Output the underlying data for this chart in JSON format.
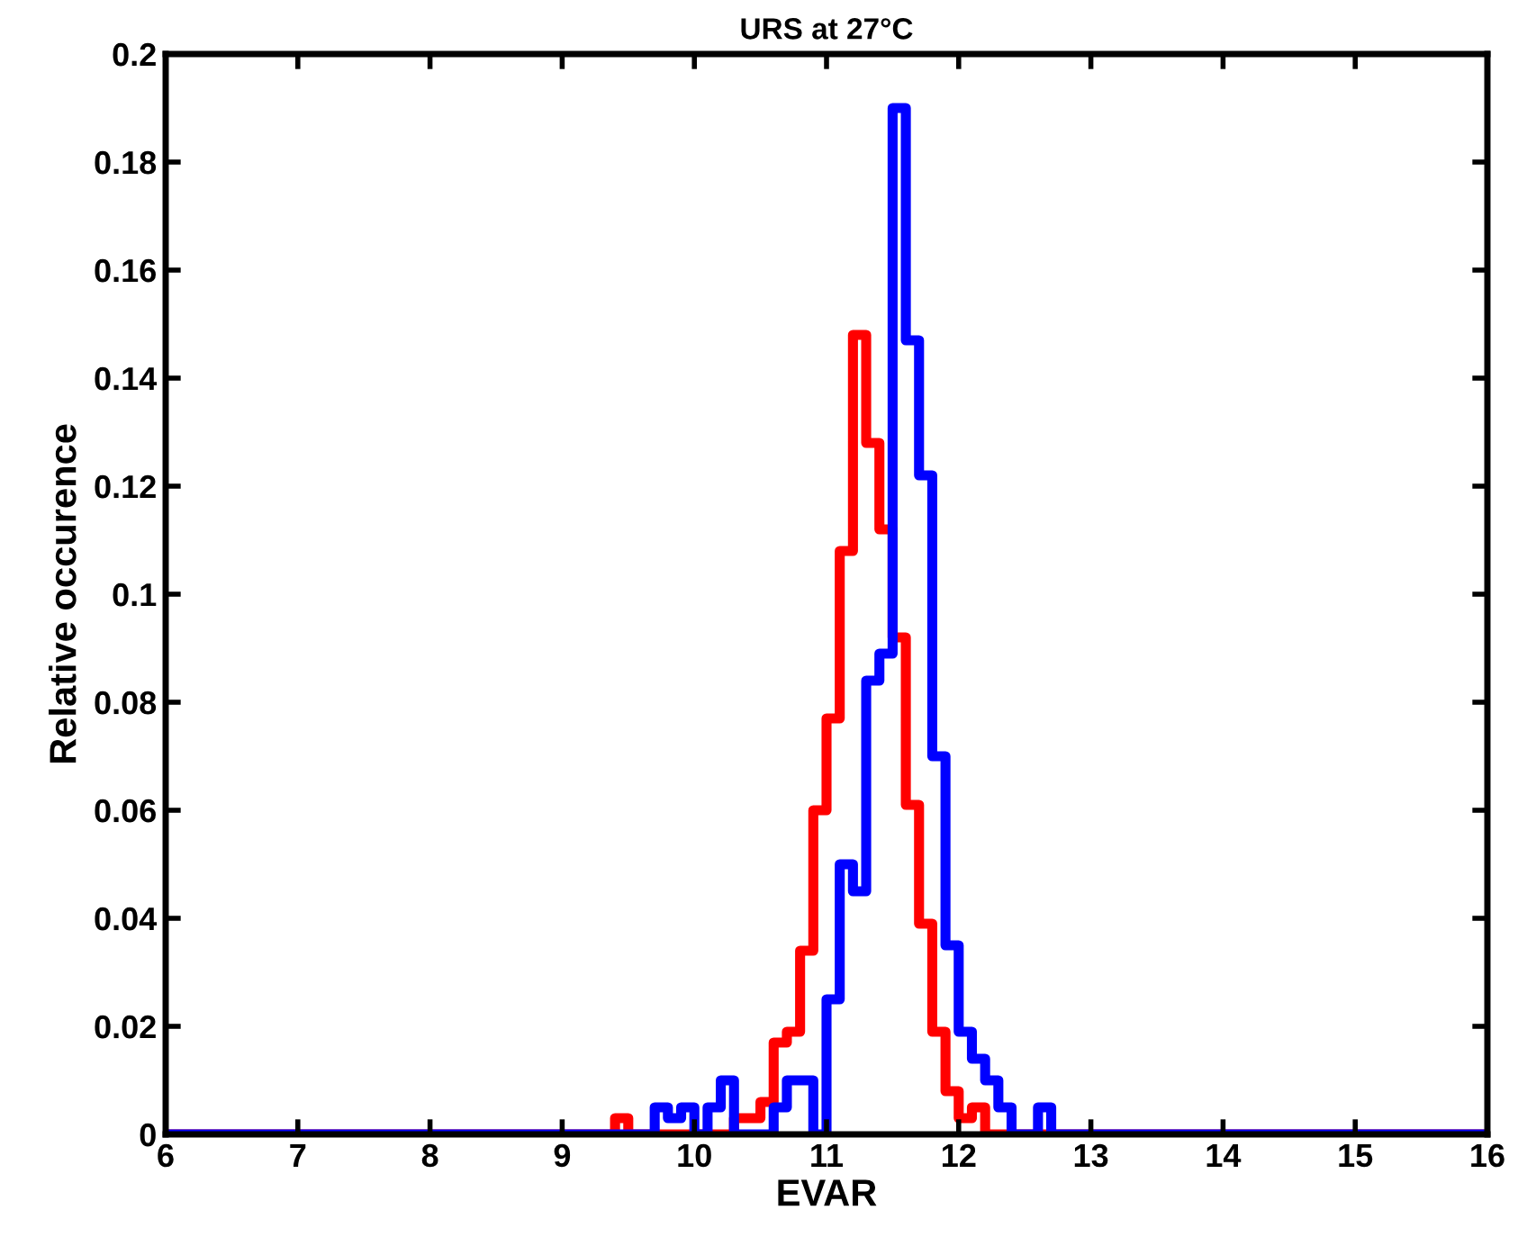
{
  "chart_data": {
    "type": "histogram",
    "title": "URS at 27°C",
    "xlabel": "EVAR",
    "ylabel": "Relative occurence",
    "bins": [
      6,
      9.3,
      9.4,
      9.5,
      9.6,
      9.7,
      9.8,
      9.9,
      10.0,
      10.1,
      10.2,
      10.3,
      10.4,
      10.5,
      10.6,
      10.7,
      10.8,
      10.9,
      11.0,
      11.1,
      11.2,
      11.3,
      11.4,
      11.5,
      11.6,
      11.7,
      11.8,
      11.9,
      12.0,
      12.1,
      12.2,
      12.3,
      12.4,
      12.5,
      12.6,
      12.7,
      12.8,
      16
    ],
    "series": [
      {
        "color": "#ff0000",
        "values": [
          0,
          0,
          0.003,
          0,
          0,
          0,
          0,
          0,
          0,
          0,
          0,
          0.003,
          0.003,
          0.006,
          0.017,
          0.019,
          0.034,
          0.06,
          0.077,
          0.108,
          0.148,
          0.128,
          0.112,
          0.092,
          0.061,
          0.039,
          0.019,
          0.008,
          0.003,
          0.005,
          0,
          0,
          0,
          0,
          0,
          0,
          0
        ]
      },
      {
        "color": "#0000ff",
        "values": [
          0,
          0,
          0,
          0,
          0,
          0.005,
          0.003,
          0.005,
          0,
          0.005,
          0.01,
          0,
          0,
          0,
          0.005,
          0.01,
          0.01,
          0,
          0.025,
          0.05,
          0.045,
          0.084,
          0.089,
          0.19,
          0.147,
          0.122,
          0.07,
          0.035,
          0.019,
          0.014,
          0.01,
          0.005,
          0,
          0,
          0.005,
          0,
          0
        ]
      }
    ],
    "xlim": [
      6,
      16
    ],
    "xticks": [
      6,
      7,
      8,
      9,
      10,
      11,
      12,
      13,
      14,
      15,
      16
    ],
    "ylim": [
      0,
      0.2
    ],
    "yticks": [
      0,
      0.02,
      0.04,
      0.06,
      0.08,
      0.1,
      0.12,
      0.14,
      0.16,
      0.18,
      0.2
    ],
    "grid": false,
    "legend": false
  }
}
